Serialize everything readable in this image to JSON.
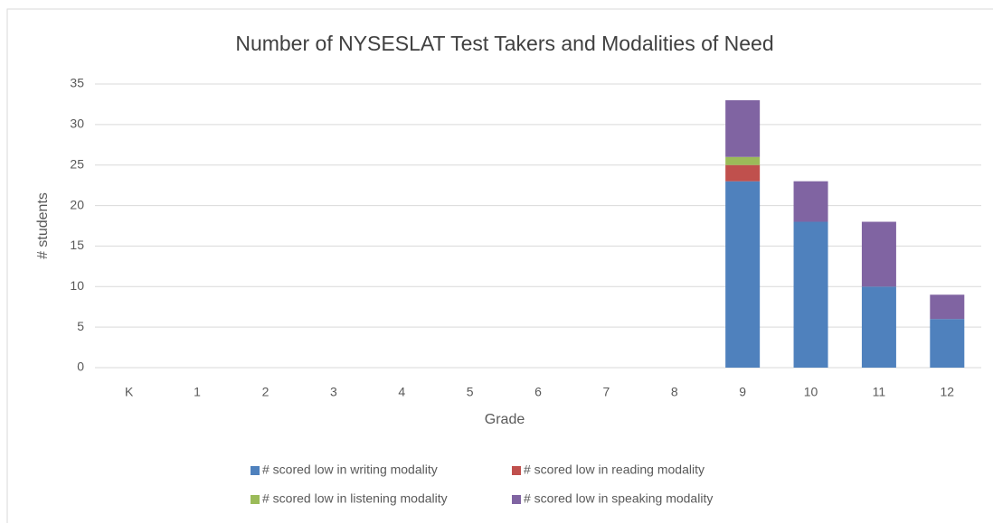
{
  "chart_data": {
    "type": "stacked_bar",
    "title": "Number of NYSESLAT Test Takers and Modalities of Need",
    "x_label": "Grade",
    "y_label": "# students",
    "categories": [
      "K",
      "1",
      "2",
      "3",
      "4",
      "5",
      "6",
      "7",
      "8",
      "9",
      "10",
      "11",
      "12"
    ],
    "series": [
      {
        "name": "# scored low in writing modality",
        "color": "#4f81bd",
        "values": [
          0,
          0,
          0,
          0,
          0,
          0,
          0,
          0,
          0,
          23,
          18,
          10,
          6
        ]
      },
      {
        "name": "# scored low in reading modality",
        "color": "#c0504d",
        "values": [
          0,
          0,
          0,
          0,
          0,
          0,
          0,
          0,
          0,
          2,
          0,
          0,
          0
        ]
      },
      {
        "name": "# scored low in listening modality",
        "color": "#9bbb59",
        "values": [
          0,
          0,
          0,
          0,
          0,
          0,
          0,
          0,
          0,
          1,
          0,
          0,
          0
        ]
      },
      {
        "name": "# scored low in speaking modality",
        "color": "#8064a2",
        "values": [
          0,
          0,
          0,
          0,
          0,
          0,
          0,
          0,
          0,
          7,
          5,
          8,
          3
        ]
      }
    ],
    "ylim": [
      0,
      35
    ],
    "yticks": [
      0,
      5,
      10,
      15,
      20,
      25,
      30,
      35
    ],
    "grid": true,
    "legend": "bottom"
  }
}
